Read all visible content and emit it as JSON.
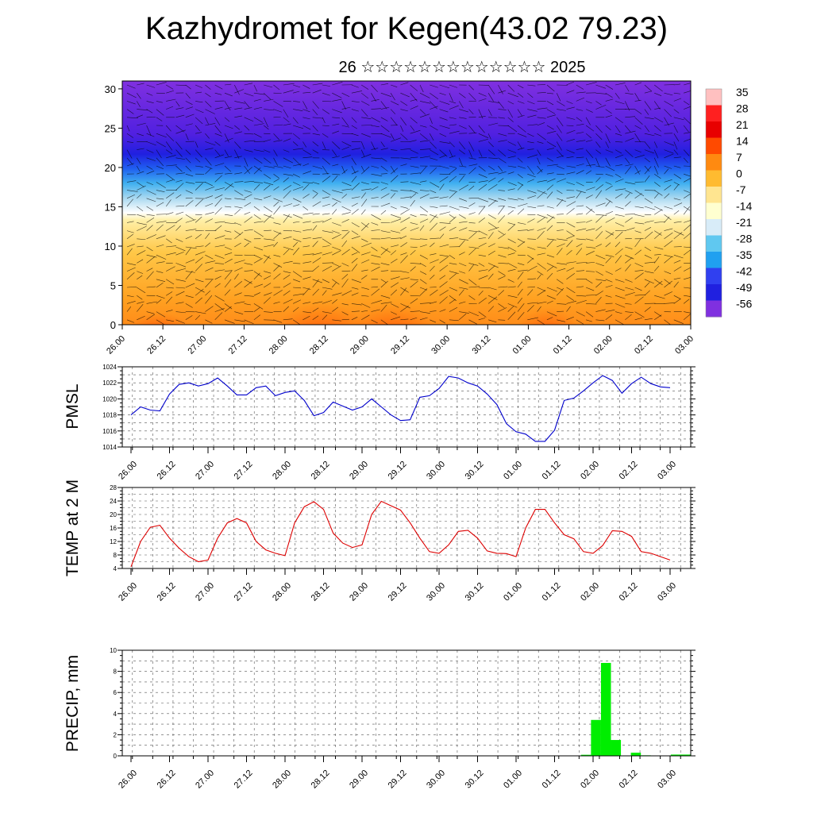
{
  "header": {
    "title": "Kazhydromet for Kegen(43.02 79.23)",
    "subtitle": "26 ☆☆☆☆☆☆☆☆☆☆☆☆☆ 2025"
  },
  "chart_data": [
    {
      "type": "heatmap",
      "name": "temperature cross-section with wind vectors",
      "y_ticks": [
        "0",
        "5",
        "10",
        "15",
        "20",
        "25",
        "30"
      ],
      "ylim": [
        0,
        31
      ],
      "x_ticks": [
        "26.00",
        "26.12",
        "27.00",
        "27.12",
        "28.00",
        "28.12",
        "29.00",
        "29.12",
        "30.00",
        "30.12",
        "01.00",
        "01.12",
        "02.00",
        "02.12",
        "03.00"
      ],
      "colorbar_labels": [
        "35",
        "28",
        "21",
        "14",
        "7",
        "0",
        "-7",
        "-14",
        "-21",
        "-28",
        "-35",
        "-42",
        "-49",
        "-56"
      ],
      "colorbar_colors": [
        "#ffc0c0",
        "#ff2020",
        "#e80000",
        "#ff4a00",
        "#ff8a10",
        "#ffbb30",
        "#ffe590",
        "#ffffd0",
        "#d8ecf8",
        "#60c8f0",
        "#20a0f0",
        "#3040f0",
        "#2020e0",
        "#8030e0"
      ]
    },
    {
      "type": "line",
      "ylabel": "PMSL",
      "ylim": [
        1014,
        1024
      ],
      "y_ticks": [
        "1014",
        "1016",
        "1018",
        "1020",
        "1022",
        "1024"
      ],
      "x_ticks": [
        "26.00",
        "26.12",
        "27.00",
        "27.12",
        "28.00",
        "28.12",
        "29.00",
        "29.12",
        "30.00",
        "30.12",
        "01.00",
        "01.12",
        "02.00",
        "02.12",
        "03.00"
      ],
      "color": "#0000cc",
      "values": [
        1018.0,
        1019.0,
        1018.6,
        1018.5,
        1020.6,
        1021.8,
        1022.0,
        1021.6,
        1021.9,
        1022.6,
        1021.6,
        1020.5,
        1020.5,
        1021.4,
        1021.6,
        1020.4,
        1020.8,
        1021.0,
        1019.8,
        1017.9,
        1018.3,
        1019.6,
        1019.1,
        1018.6,
        1019.0,
        1020.0,
        1019.0,
        1018.0,
        1017.3,
        1017.4,
        1020.2,
        1020.4,
        1021.3,
        1022.8,
        1022.6,
        1022.0,
        1021.6,
        1020.6,
        1019.3,
        1016.9,
        1015.9,
        1015.6,
        1014.7,
        1014.7,
        1016.1,
        1019.8,
        1020.1,
        1021.0,
        1022.0,
        1022.9,
        1022.3,
        1020.7,
        1021.9,
        1022.7,
        1021.9,
        1021.5,
        1021.4
      ]
    },
    {
      "type": "line",
      "ylabel": "TEMP at 2 M",
      "ylim": [
        4,
        28
      ],
      "y_ticks": [
        "4",
        "8",
        "12",
        "16",
        "20",
        "24",
        "28"
      ],
      "x_ticks": [
        "26.00",
        "26.12",
        "27.00",
        "27.12",
        "28.00",
        "28.12",
        "29.00",
        "29.12",
        "30.00",
        "30.12",
        "01.00",
        "01.12",
        "02.00",
        "02.12",
        "03.00"
      ],
      "color": "#dd0000",
      "values": [
        4.5,
        12.0,
        16.2,
        16.8,
        13.0,
        10.0,
        7.5,
        6.0,
        6.5,
        13.0,
        17.5,
        18.8,
        17.5,
        12.0,
        9.5,
        8.5,
        7.8,
        17.5,
        22.3,
        23.8,
        21.5,
        14.5,
        11.5,
        10.2,
        11.0,
        20.0,
        23.9,
        22.6,
        21.3,
        17.5,
        13.0,
        9.0,
        8.5,
        11.0,
        15.0,
        15.3,
        13.0,
        9.2,
        8.5,
        8.4,
        7.5,
        16.0,
        21.5,
        21.5,
        17.5,
        14.0,
        12.8,
        9.0,
        8.5,
        10.8,
        15.2,
        15.0,
        13.5,
        9.0,
        8.5,
        7.5,
        6.5
      ]
    },
    {
      "type": "bar",
      "ylabel": "PRECIP, mm",
      "ylim": [
        0,
        10
      ],
      "y_ticks": [
        "0",
        "2",
        "4",
        "6",
        "8",
        "10"
      ],
      "x_ticks": [
        "26.00",
        "26.12",
        "27.00",
        "27.12",
        "28.00",
        "28.12",
        "29.00",
        "29.12",
        "30.00",
        "30.12",
        "01.00",
        "01.12",
        "02.00",
        "02.12",
        "03.00"
      ],
      "color": "#00ee00",
      "values": [
        0,
        0,
        0,
        0,
        0,
        0,
        0,
        0,
        0,
        0,
        0,
        0,
        0,
        0,
        0,
        0,
        0,
        0,
        0,
        0,
        0,
        0,
        0,
        0,
        0,
        0,
        0,
        0,
        0,
        0,
        0,
        0,
        0,
        0,
        0,
        0,
        0,
        0,
        0,
        0,
        0,
        0,
        0,
        0,
        0,
        0,
        0.1,
        3.4,
        8.8,
        1.5,
        0,
        0.3,
        0.05,
        0,
        0,
        0.12,
        0.12
      ]
    }
  ]
}
